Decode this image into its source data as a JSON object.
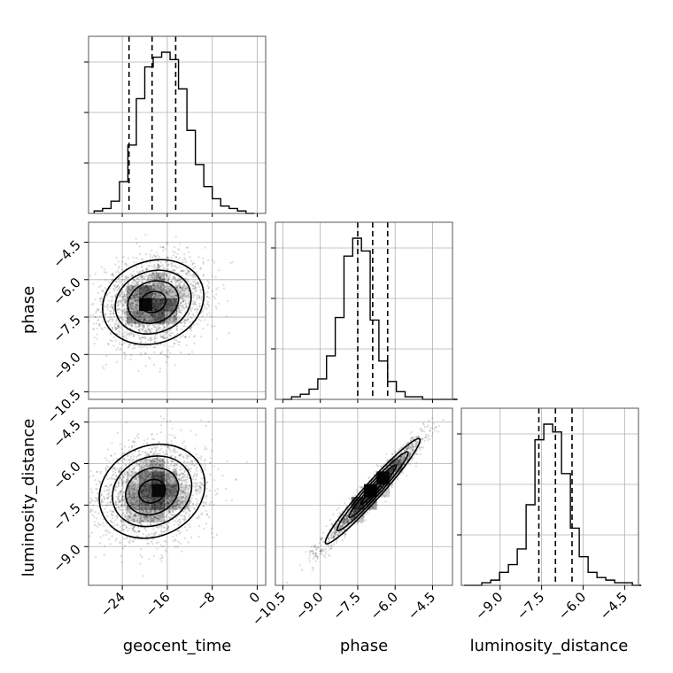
{
  "chart_data": {
    "type": "corner",
    "parameters": [
      "geocent_time",
      "phase",
      "luminosity_distance"
    ],
    "axis_labels": {
      "x": [
        "geocent_time",
        "phase",
        "luminosity_distance"
      ],
      "y": [
        "phase",
        "luminosity_distance"
      ]
    },
    "ranges": {
      "geocent_time": [
        -30,
        1.5
      ],
      "phase": [
        -10.8,
        -3.7
      ],
      "luminosity_distance": [
        -10.4,
        -4.0
      ]
    },
    "ticks": {
      "geocent_time": {
        "values": [
          -24,
          -16,
          -8,
          0
        ],
        "labels": [
          "−24",
          "−16",
          "−8",
          "0"
        ]
      },
      "phase": {
        "values": [
          -10.5,
          -9.0,
          -7.5,
          -6.0,
          -4.5
        ],
        "labels": [
          "−10.5",
          "−9.0",
          "−7.5",
          "−6.0",
          "−4.5"
        ]
      },
      "luminosity_distance": {
        "values": [
          -9.0,
          -7.5,
          -6.0,
          -4.5
        ],
        "labels": [
          "−9.0",
          "−7.5",
          "−6.0",
          "−4.5"
        ]
      }
    },
    "marginals": {
      "geocent_time": {
        "bin_start": -29,
        "bin_width": 1.5,
        "counts": [
          1,
          2,
          5,
          13,
          28,
          47,
          60,
          64,
          66,
          63,
          51,
          34,
          20,
          11,
          6,
          3,
          2,
          1,
          0
        ],
        "quantiles": [
          -22.8,
          -18.7,
          -14.5
        ]
      },
      "phase": {
        "bin_start": -10.5,
        "bin_width": 0.35,
        "counts": [
          0,
          1,
          2,
          4,
          8,
          17,
          32,
          56,
          63,
          58,
          31,
          15,
          7,
          3,
          1,
          1,
          0,
          0,
          0,
          0
        ],
        "quantiles": [
          -7.5,
          -6.9,
          -6.3
        ]
      },
      "luminosity_distance": {
        "bin_start": -10.3,
        "bin_width": 0.32,
        "counts": [
          0,
          0,
          1,
          2,
          5,
          8,
          14,
          31,
          56,
          62,
          59,
          43,
          22,
          11,
          5,
          3,
          2,
          1,
          1,
          0
        ],
        "quantiles": [
          -7.6,
          -7.0,
          -6.4
        ]
      }
    },
    "joint": [
      {
        "x": "geocent_time",
        "y": "phase",
        "mean": [
          -18.5,
          -6.9
        ],
        "sigma": [
          4.5,
          0.85
        ],
        "correlation": 0.15
      },
      {
        "x": "geocent_time",
        "y": "luminosity_distance",
        "mean": [
          -18.7,
          -7.0
        ],
        "sigma": [
          4.7,
          0.85
        ],
        "correlation": 0.15
      },
      {
        "x": "phase",
        "y": "luminosity_distance",
        "mean": [
          -6.9,
          -7.0
        ],
        "sigma": [
          0.95,
          0.95
        ],
        "correlation": 0.97
      }
    ],
    "contour_levels_sigma": [
      0.5,
      1.0,
      1.5,
      2.0
    ]
  }
}
